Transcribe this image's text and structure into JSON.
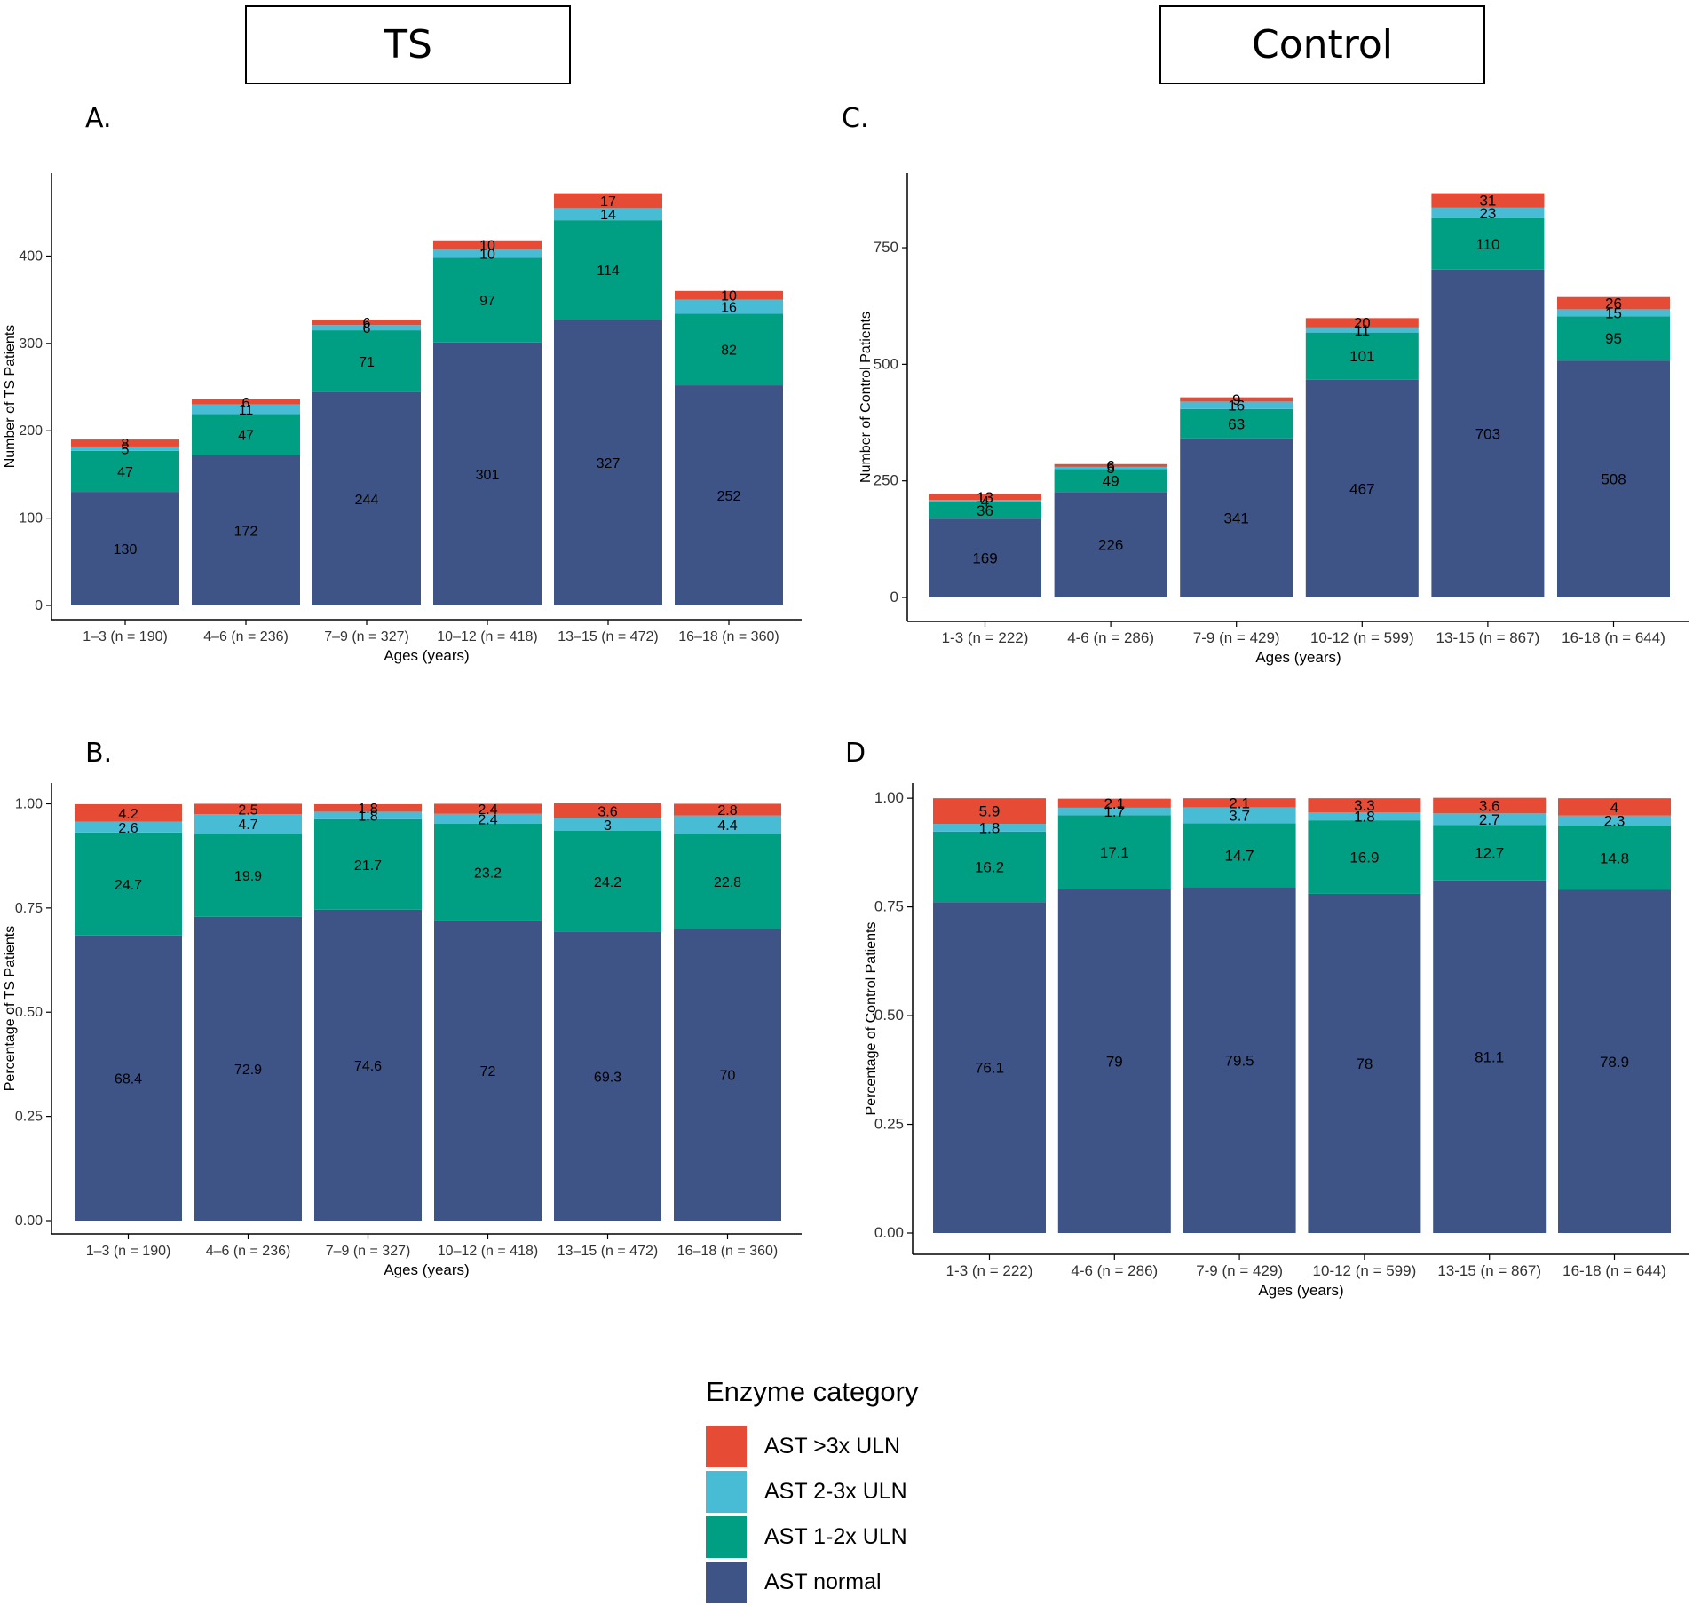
{
  "groups": {
    "ts": "TS",
    "control": "Control"
  },
  "panels": {
    "a": "A.",
    "b": "B.",
    "c": "C.",
    "d": "D"
  },
  "colors": {
    "normal": "#3e5386",
    "one_two": "#009f84",
    "two_three": "#48bcd4",
    "three_plus": "#e64b35",
    "axis": "#333333"
  },
  "legend": {
    "title": "Enzyme category",
    "items": [
      {
        "label": "AST >3x ULN",
        "color": "#e64b35"
      },
      {
        "label": "AST 2-3x ULN",
        "color": "#48bcd4"
      },
      {
        "label": "AST 1-2x ULN",
        "color": "#009f84"
      },
      {
        "label": "AST normal",
        "color": "#3e5386"
      }
    ]
  },
  "chart_data": [
    {
      "id": "A",
      "type": "bar",
      "stacked": true,
      "xlabel": "Ages (years)",
      "ylabel": "Number of TS Patients",
      "ylim": [
        0,
        495
      ],
      "yticks": [
        0,
        100,
        200,
        300,
        400
      ],
      "ytick_labels": [
        "0",
        "100",
        "200",
        "300",
        "400"
      ],
      "categories": [
        "1–3 (n = 190)",
        "4–6 (n = 236)",
        "7–9 (n = 327)",
        "10–12 (n = 418)",
        "13–15 (n = 472)",
        "16–18 (n = 360)"
      ],
      "series": [
        {
          "name": "AST normal",
          "key": "normal",
          "values": [
            130,
            172,
            244,
            301,
            327,
            252
          ],
          "labels": [
            "130",
            "172",
            "244",
            "301",
            "327",
            "252"
          ]
        },
        {
          "name": "AST 1-2x ULN",
          "key": "one_two",
          "values": [
            47,
            47,
            71,
            97,
            114,
            82
          ],
          "labels": [
            "47",
            "47",
            "71",
            "97",
            "114",
            "82"
          ]
        },
        {
          "name": "AST 2-3x ULN",
          "key": "two_three",
          "values": [
            5,
            11,
            6,
            10,
            14,
            16
          ],
          "labels": [
            "5",
            "11",
            "6",
            "10",
            "14",
            "16"
          ]
        },
        {
          "name": "AST >3x ULN",
          "key": "three_plus",
          "values": [
            8,
            6,
            6,
            10,
            17,
            10
          ],
          "labels": [
            "8",
            "6",
            "6",
            "10",
            "17",
            "10"
          ]
        }
      ]
    },
    {
      "id": "B",
      "type": "bar",
      "stacked": true,
      "xlabel": "Ages (years)",
      "ylabel": "Percentage of TS Patients",
      "ylim": [
        0,
        1.05
      ],
      "yticks": [
        0,
        0.25,
        0.5,
        0.75,
        1.0
      ],
      "ytick_labels": [
        "0.00",
        "0.25",
        "0.50",
        "0.75",
        "1.00"
      ],
      "categories": [
        "1–3 (n = 190)",
        "4–6 (n = 236)",
        "7–9 (n = 327)",
        "10–12 (n = 418)",
        "13–15 (n = 472)",
        "16–18 (n = 360)"
      ],
      "series": [
        {
          "name": "AST normal",
          "key": "normal",
          "values": [
            0.684,
            0.729,
            0.746,
            0.72,
            0.693,
            0.7
          ],
          "labels": [
            "68.4",
            "72.9",
            "74.6",
            "72",
            "69.3",
            "70"
          ]
        },
        {
          "name": "AST 1-2x ULN",
          "key": "one_two",
          "values": [
            0.247,
            0.199,
            0.217,
            0.232,
            0.242,
            0.228
          ],
          "labels": [
            "24.7",
            "19.9",
            "21.7",
            "23.2",
            "24.2",
            "22.8"
          ]
        },
        {
          "name": "AST 2-3x ULN",
          "key": "two_three",
          "values": [
            0.026,
            0.047,
            0.018,
            0.024,
            0.03,
            0.044
          ],
          "labels": [
            "2.6",
            "4.7",
            "1.8",
            "2.4",
            "3",
            "4.4"
          ]
        },
        {
          "name": "AST >3x ULN",
          "key": "three_plus",
          "values": [
            0.042,
            0.025,
            0.018,
            0.024,
            0.036,
            0.028
          ],
          "labels": [
            "4.2",
            "2.5",
            "1.8",
            "2.4",
            "3.6",
            "2.8"
          ]
        }
      ]
    },
    {
      "id": "C",
      "type": "bar",
      "stacked": true,
      "xlabel": "Ages (years)",
      "ylabel": "Number of Control Patients",
      "ylim": [
        0,
        910
      ],
      "yticks": [
        0,
        250,
        500,
        750
      ],
      "ytick_labels": [
        "0",
        "250",
        "500",
        "750"
      ],
      "categories": [
        "1-3 (n = 222)",
        "4-6 (n = 286)",
        "7-9 (n = 429)",
        "10-12 (n = 599)",
        "13-15 (n = 867)",
        "16-18 (n = 644)"
      ],
      "series": [
        {
          "name": "AST normal",
          "key": "normal",
          "values": [
            169,
            226,
            341,
            467,
            703,
            508
          ],
          "labels": [
            "169",
            "226",
            "341",
            "467",
            "703",
            "508"
          ]
        },
        {
          "name": "AST 1-2x ULN",
          "key": "one_two",
          "values": [
            36,
            49,
            63,
            101,
            110,
            95
          ],
          "labels": [
            "36",
            "49",
            "63",
            "101",
            "110",
            "95"
          ]
        },
        {
          "name": "AST 2-3x ULN",
          "key": "two_three",
          "values": [
            4,
            5,
            16,
            11,
            23,
            15
          ],
          "labels": [
            "4",
            "5",
            "16",
            "11",
            "23",
            "15"
          ]
        },
        {
          "name": "AST >3x ULN",
          "key": "three_plus",
          "values": [
            13,
            6,
            9,
            20,
            31,
            26
          ],
          "labels": [
            "13",
            "6",
            "9",
            "20",
            "31",
            "26"
          ]
        }
      ]
    },
    {
      "id": "D",
      "type": "bar",
      "stacked": true,
      "xlabel": "Ages (years)",
      "ylabel": "Percentage of Control Patients",
      "ylim": [
        0,
        1.035
      ],
      "yticks": [
        0,
        0.25,
        0.5,
        0.75,
        1.0
      ],
      "ytick_labels": [
        "0.00",
        "0.25",
        "0.50",
        "0.75",
        "1.00"
      ],
      "categories": [
        "1-3 (n = 222)",
        "4-6 (n = 286)",
        "7-9 (n = 429)",
        "10-12 (n = 599)",
        "13-15 (n = 867)",
        "16-18 (n = 644)"
      ],
      "series": [
        {
          "name": "AST normal",
          "key": "normal",
          "values": [
            0.761,
            0.79,
            0.795,
            0.78,
            0.811,
            0.789
          ],
          "labels": [
            "76.1",
            "79",
            "79.5",
            "78",
            "81.1",
            "78.9"
          ]
        },
        {
          "name": "AST 1-2x ULN",
          "key": "one_two",
          "values": [
            0.162,
            0.171,
            0.147,
            0.169,
            0.127,
            0.148
          ],
          "labels": [
            "16.2",
            "17.1",
            "14.7",
            "16.9",
            "12.7",
            "14.8"
          ]
        },
        {
          "name": "AST 2-3x ULN",
          "key": "two_three",
          "values": [
            0.018,
            0.017,
            0.037,
            0.018,
            0.027,
            0.023
          ],
          "labels": [
            "1.8",
            "1.7",
            "3.7",
            "1.8",
            "2.7",
            "2.3"
          ]
        },
        {
          "name": "AST >3x ULN",
          "key": "three_plus",
          "values": [
            0.059,
            0.021,
            0.021,
            0.033,
            0.036,
            0.04
          ],
          "labels": [
            "5.9",
            "2.1",
            "2.1",
            "3.3",
            "3.6",
            "4"
          ]
        }
      ]
    }
  ]
}
